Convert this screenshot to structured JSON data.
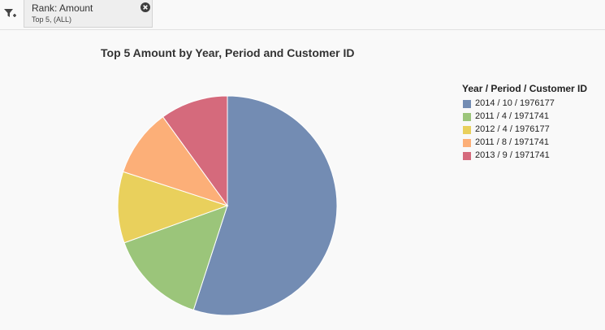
{
  "filter": {
    "icon": "filter-add-icon",
    "chip": {
      "title": "Rank: Amount",
      "subtitle": "Top 5, (ALL)",
      "close_icon": "close-icon"
    }
  },
  "chart_data": {
    "type": "pie",
    "title": "Top 5 Amount by Year, Period and Customer ID",
    "legend_title": "Year / Period / Customer ID",
    "legend_position": "right",
    "categories": [
      "2014 / 10 / 1976177",
      "2011 / 4 / 1971741",
      "2012 / 4 / 1976177",
      "2011 / 8 / 1971741",
      "2013 / 9 / 1971741"
    ],
    "values": [
      55,
      14.5,
      10.5,
      10,
      10
    ],
    "colors": [
      "#738cb3",
      "#9bc57a",
      "#e9d05c",
      "#fcaf78",
      "#d56a7c"
    ]
  }
}
